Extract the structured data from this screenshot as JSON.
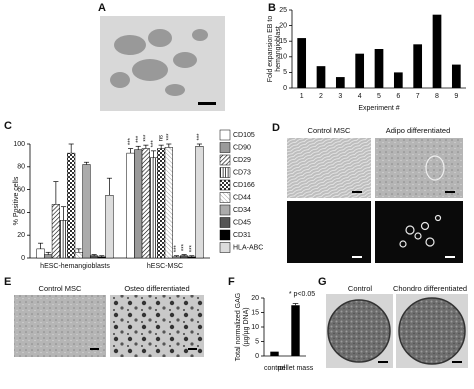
{
  "panels": {
    "A": "A",
    "B": "B",
    "C": "C",
    "D": "D",
    "E": "E",
    "F": "F",
    "G": "G",
    "d_captions": [
      "Control MSC",
      "Adipo differentiated"
    ],
    "e_captions": [
      "Control MSC",
      "Osteo differentiated"
    ],
    "g_captions": [
      "Control",
      "Chondro differentiated"
    ]
  },
  "chart_data": [
    {
      "type": "bar",
      "ylabel": [
        "Fold expansion EB to",
        "hemangioblast"
      ],
      "xlabel": "Experiment #",
      "categories": [
        "1",
        "2",
        "3",
        "4",
        "5",
        "6",
        "7",
        "8",
        "9"
      ],
      "values": [
        16,
        7,
        3.5,
        11,
        12.5,
        5,
        14,
        23.5,
        7.5
      ],
      "color": "#000000",
      "ylim": [
        0,
        25
      ],
      "yticks": [
        0,
        5,
        10,
        15,
        20,
        25
      ]
    },
    {
      "type": "bar",
      "ylabel": [
        "% Positive cells"
      ],
      "categories": [
        "hESC-hemangioblasts",
        "hESC-MSC"
      ],
      "series": [
        {
          "name": "CD105",
          "color": "#ffffff",
          "values": [
            8,
            92
          ],
          "errors": [
            5,
            4
          ],
          "annotations": [
            null,
            "***"
          ]
        },
        {
          "name": "CD90",
          "color": "#9a9a9a",
          "values": [
            3,
            95
          ],
          "errors": [
            2,
            3
          ],
          "annotations": [
            null,
            "***"
          ]
        },
        {
          "name": "CD29",
          "color": "#ffffff",
          "pattern": "diag",
          "values": [
            47,
            96
          ],
          "errors": [
            20,
            3
          ],
          "annotations": [
            null,
            "***"
          ]
        },
        {
          "name": "CD73",
          "color": "#ffffff",
          "pattern": "vert",
          "values": [
            33,
            88
          ],
          "errors": [
            12,
            6
          ],
          "annotations": [
            null,
            "***"
          ]
        },
        {
          "name": "CD166",
          "color": "#ffffff",
          "pattern": "check",
          "values": [
            92,
            96
          ],
          "errors": [
            8,
            3
          ],
          "annotations": [
            null,
            "ns"
          ]
        },
        {
          "name": "CD44",
          "color": "#ffffff",
          "pattern": "hatch",
          "values": [
            5,
            97
          ],
          "errors": [
            3,
            3
          ],
          "annotations": [
            null,
            "***"
          ]
        },
        {
          "name": "CD34",
          "color": "#cccccc",
          "pattern": "dots",
          "values": [
            82,
            1
          ],
          "errors": [
            2,
            1
          ],
          "annotations": [
            null,
            "***"
          ]
        },
        {
          "name": "CD45",
          "color": "#555555",
          "values": [
            2,
            2
          ],
          "errors": [
            1,
            1
          ],
          "annotations": [
            null,
            "***"
          ]
        },
        {
          "name": "CD31",
          "color": "#000000",
          "values": [
            1,
            1
          ],
          "errors": [
            1,
            1
          ],
          "annotations": [
            null,
            "***"
          ]
        },
        {
          "name": "HLA-ABC",
          "color": "#dddddd",
          "pattern": "fine",
          "values": [
            55,
            98
          ],
          "errors": [
            15,
            2
          ],
          "annotations": [
            null,
            "***"
          ]
        }
      ],
      "ylim": [
        0,
        100
      ],
      "yticks": [
        0,
        20,
        40,
        60,
        80,
        100
      ]
    },
    {
      "type": "bar",
      "ylabel": [
        "Total normalized GAG",
        "(µg/µg DNA)"
      ],
      "categories": [
        "control",
        "pellet mass"
      ],
      "values": [
        1.5,
        17.5
      ],
      "errors": [
        0,
        0.6
      ],
      "color": "#000000",
      "annotation": "* p<0.05",
      "ylim": [
        0,
        20
      ],
      "yticks": [
        0,
        5,
        10,
        15,
        20
      ]
    }
  ]
}
